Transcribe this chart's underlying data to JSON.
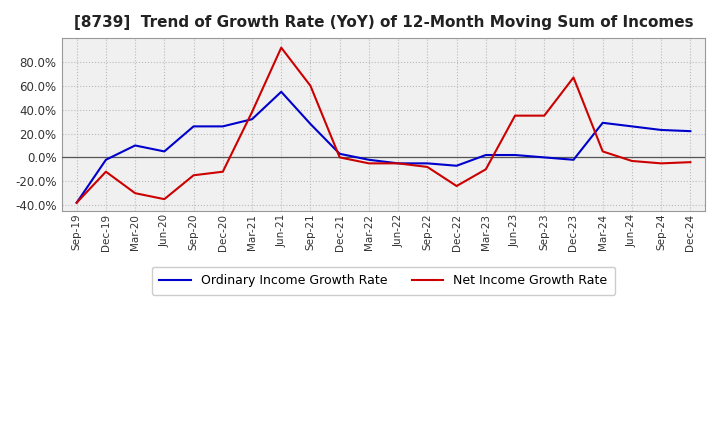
{
  "title": "[8739]  Trend of Growth Rate (YoY) of 12-Month Moving Sum of Incomes",
  "x_labels": [
    "Sep-19",
    "Dec-19",
    "Mar-20",
    "Jun-20",
    "Sep-20",
    "Dec-20",
    "Mar-21",
    "Jun-21",
    "Sep-21",
    "Dec-21",
    "Mar-22",
    "Jun-22",
    "Sep-22",
    "Dec-22",
    "Mar-23",
    "Jun-23",
    "Sep-23",
    "Dec-23",
    "Mar-24",
    "Jun-24",
    "Sep-24",
    "Dec-24"
  ],
  "ordinary_income": [
    -38,
    -2,
    10,
    5,
    26,
    26,
    32,
    55,
    28,
    3,
    -2,
    -5,
    -5,
    -7,
    2,
    2,
    0,
    -2,
    29,
    26,
    23,
    22
  ],
  "net_income": [
    -38,
    -12,
    -30,
    -35,
    -15,
    -12,
    38,
    92,
    60,
    0,
    -5,
    -5,
    -8,
    -24,
    -10,
    35,
    35,
    67,
    5,
    -3,
    -5,
    -4
  ],
  "ylim": [
    -45,
    100
  ],
  "yticks": [
    -40.0,
    -20.0,
    0.0,
    20.0,
    40.0,
    60.0,
    80.0
  ],
  "ordinary_color": "#0000cc",
  "net_color": "#cc0000",
  "legend_ordinary": "Ordinary Income Growth Rate",
  "legend_net": "Net Income Growth Rate",
  "bg_color": "#ffffff",
  "plot_bg_color": "#f0f0f0",
  "grid_color": "#bbbbbb"
}
